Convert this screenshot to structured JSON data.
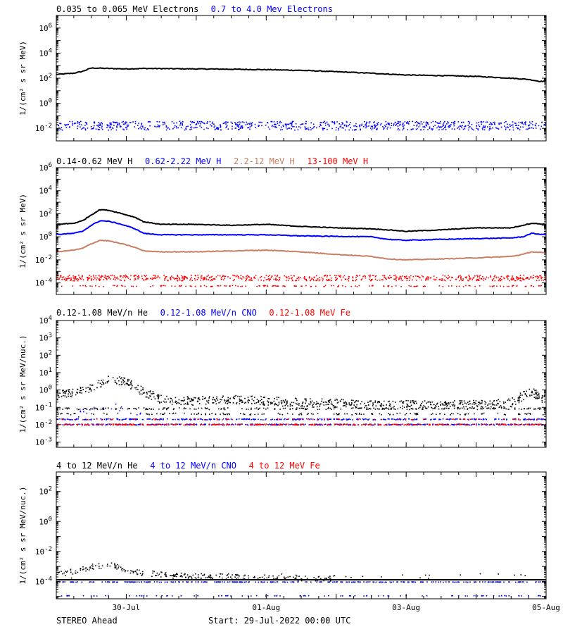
{
  "colors": {
    "black": "#000000",
    "blue": "#0000ff",
    "tan": "#c87f64",
    "red": "#ff0000"
  },
  "x_axis": {
    "start_hour": 0,
    "end_hour": 168,
    "ticks": [
      {
        "label": "30-Jul",
        "hour": 24
      },
      {
        "label": "01-Aug",
        "hour": 72
      },
      {
        "label": "03-Aug",
        "hour": 120
      },
      {
        "label": "05-Aug",
        "hour": 168
      }
    ]
  },
  "footer": {
    "left": "STEREO Ahead",
    "center": "Start: 29-Jul-2022 00:00 UTC"
  },
  "chart_data": [
    {
      "type": "line",
      "log_y": true,
      "ylim": [
        0.001,
        10000000.0
      ],
      "ylabel": "1/(cm² s sr MeV)",
      "ytick_labels": [
        {
          "base": "10",
          "exp": "-2",
          "value": 0.01
        },
        {
          "base": "10",
          "exp": "0",
          "value": 1
        },
        {
          "base": "10",
          "exp": "2",
          "value": 100.0
        },
        {
          "base": "10",
          "exp": "4",
          "value": 10000.0
        },
        {
          "base": "10",
          "exp": "6",
          "value": 1000000.0
        }
      ],
      "legend": [
        {
          "text": "0.035 to 0.065 MeV Electrons",
          "color": "#000000"
        },
        {
          "text": "0.7 to 4.0 Mev Electrons",
          "color": "#0000ff"
        }
      ],
      "series": [
        {
          "color": "#000000",
          "style": "line",
          "x": [
            0,
            6,
            9,
            12,
            18,
            24,
            30,
            36,
            48,
            60,
            72,
            84,
            96,
            108,
            120,
            132,
            144,
            156,
            162,
            166,
            168
          ],
          "y": [
            200,
            250,
            350,
            650,
            600,
            550,
            600,
            580,
            550,
            520,
            480,
            420,
            330,
            250,
            180,
            160,
            140,
            100,
            80,
            55,
            60
          ]
        },
        {
          "color": "#0000ff",
          "style": "noise",
          "base": 0.018,
          "spread": 0.35,
          "density": 1.0,
          "n": 800
        }
      ]
    },
    {
      "type": "line",
      "log_y": true,
      "ylim": [
        1e-05,
        1000000.0
      ],
      "ylabel": "1/(cm² s sr MeV)",
      "ytick_labels": [
        {
          "base": "10",
          "exp": "-4",
          "value": 0.0001
        },
        {
          "base": "10",
          "exp": "-2",
          "value": 0.01
        },
        {
          "base": "10",
          "exp": "0",
          "value": 1
        },
        {
          "base": "10",
          "exp": "2",
          "value": 100.0
        },
        {
          "base": "10",
          "exp": "4",
          "value": 10000.0
        },
        {
          "base": "10",
          "exp": "6",
          "value": 1000000.0
        }
      ],
      "legend": [
        {
          "text": "0.14-0.62 MeV H",
          "color": "#000000"
        },
        {
          "text": "0.62-2.22 MeV H",
          "color": "#0000ff"
        },
        {
          "text": "2.2-12 MeV H",
          "color": "#c87f64"
        },
        {
          "text": "13-100 MeV H",
          "color": "#ff0000"
        }
      ],
      "series": [
        {
          "color": "#000000",
          "style": "line",
          "x": [
            0,
            6,
            9,
            12,
            15,
            18,
            21,
            24,
            27,
            30,
            36,
            48,
            60,
            72,
            84,
            96,
            108,
            114,
            120,
            132,
            144,
            156,
            160,
            163,
            168
          ],
          "y": [
            12,
            15,
            25,
            80,
            230,
            200,
            130,
            80,
            50,
            20,
            12,
            12,
            10,
            12,
            8,
            6,
            5,
            4,
            3,
            4,
            6,
            6,
            10,
            15,
            12
          ]
        },
        {
          "color": "#0000ff",
          "style": "line",
          "x": [
            0,
            6,
            9,
            12,
            15,
            18,
            21,
            24,
            27,
            30,
            36,
            48,
            60,
            72,
            84,
            96,
            108,
            114,
            120,
            132,
            144,
            156,
            160,
            163,
            168
          ],
          "y": [
            1.6,
            2,
            3,
            10,
            25,
            22,
            15,
            9,
            5,
            2,
            1.5,
            1.5,
            1.5,
            1.5,
            1.2,
            1.1,
            1.0,
            0.6,
            0.5,
            0.6,
            0.7,
            0.8,
            1.0,
            2.0,
            1.5
          ]
        },
        {
          "color": "#c87f64",
          "style": "line",
          "x": [
            0,
            6,
            9,
            12,
            15,
            18,
            21,
            24,
            27,
            30,
            36,
            48,
            60,
            72,
            84,
            96,
            108,
            114,
            120,
            132,
            144,
            156,
            160,
            163,
            168
          ],
          "y": [
            0.05,
            0.07,
            0.1,
            0.25,
            0.5,
            0.45,
            0.3,
            0.2,
            0.12,
            0.06,
            0.05,
            0.05,
            0.06,
            0.07,
            0.05,
            0.03,
            0.02,
            0.012,
            0.01,
            0.012,
            0.015,
            0.02,
            0.03,
            0.05,
            0.04
          ]
        },
        {
          "color": "#ff0000",
          "style": "noise",
          "base": 0.0003,
          "spread": 0.25,
          "density": 1.0,
          "n": 700
        },
        {
          "color": "#ff0000",
          "style": "noise",
          "base": 6e-05,
          "spread": 0.05,
          "density": 0.35,
          "n": 400
        }
      ]
    },
    {
      "type": "scatter",
      "log_y": true,
      "ylim": [
        0.0005,
        10000.0
      ],
      "ylabel": "1/(cm² s sr MeV/nuc.)",
      "ytick_labels": [
        {
          "base": "10",
          "exp": "-3",
          "value": 0.001
        },
        {
          "base": "10",
          "exp": "-2",
          "value": 0.01
        },
        {
          "base": "10",
          "exp": "-1",
          "value": 0.1
        },
        {
          "base": "10",
          "exp": "0",
          "value": 1
        },
        {
          "base": "10",
          "exp": "1",
          "value": 10
        },
        {
          "base": "10",
          "exp": "2",
          "value": 100.0
        },
        {
          "base": "10",
          "exp": "3",
          "value": 1000.0
        },
        {
          "base": "10",
          "exp": "4",
          "value": 10000.0
        }
      ],
      "legend": [
        {
          "text": "0.12-1.08 MeV/n He",
          "color": "#000000"
        },
        {
          "text": "0.12-1.08 MeV/n CNO",
          "color": "#0000ff"
        },
        {
          "text": "0.12-1.08 MeV Fe",
          "color": "#ff0000"
        }
      ],
      "series": [
        {
          "color": "#000000",
          "style": "noise-track",
          "spread": 0.25,
          "density": 0.9,
          "n": 900,
          "x": [
            0,
            6,
            12,
            18,
            24,
            30,
            36,
            48,
            60,
            72,
            84,
            96,
            108,
            120,
            132,
            144,
            156,
            160,
            163,
            166,
            168
          ],
          "y": [
            0.5,
            0.8,
            1.5,
            5,
            3,
            0.8,
            0.3,
            0.25,
            0.3,
            0.25,
            0.2,
            0.18,
            0.15,
            0.15,
            0.15,
            0.15,
            0.2,
            0.5,
            0.8,
            0.4,
            0.3
          ]
        },
        {
          "color": "#000000",
          "style": "noise",
          "base": 0.09,
          "spread": 0.05,
          "density": 0.4,
          "n": 500
        },
        {
          "color": "#000000",
          "style": "noise",
          "base": 0.045,
          "spread": 0.05,
          "density": 0.3,
          "n": 500
        },
        {
          "color": "#0000ff",
          "style": "noise-track",
          "spread": 0.2,
          "density": 0.5,
          "n": 200,
          "x": [
            6,
            12,
            18,
            24,
            30
          ],
          "y": [
            0.04,
            0.08,
            0.15,
            0.07,
            0.04
          ]
        },
        {
          "color": "#0000ff",
          "style": "noise",
          "base": 0.022,
          "spread": 0.03,
          "density": 0.55,
          "n": 700
        },
        {
          "color": "#0000ff",
          "style": "noise",
          "base": 0.011,
          "spread": 0.03,
          "density": 0.55,
          "n": 800
        },
        {
          "color": "#ff0000",
          "style": "noise",
          "base": 0.011,
          "spread": 0.03,
          "density": 0.45,
          "n": 800
        },
        {
          "color": "#ff0000",
          "style": "noise",
          "base": 0.022,
          "spread": 0.03,
          "density": 0.2,
          "n": 300
        }
      ]
    },
    {
      "type": "scatter",
      "log_y": true,
      "ylim": [
        7e-06,
        2000.0
      ],
      "ylabel": "1/(cm² s sr MeV/nuc.)",
      "ytick_labels": [
        {
          "base": "10",
          "exp": "-4",
          "value": 0.0001
        },
        {
          "base": "10",
          "exp": "-2",
          "value": 0.01
        },
        {
          "base": "10",
          "exp": "0",
          "value": 1
        },
        {
          "base": "10",
          "exp": "2",
          "value": 100.0
        }
      ],
      "legend": [
        {
          "text": "4 to 12 MeV/n He",
          "color": "#000000"
        },
        {
          "text": "4 to 12 MeV/n CNO",
          "color": "#0000ff"
        },
        {
          "text": "4 to 12 MeV Fe",
          "color": "#ff0000"
        }
      ],
      "series": [
        {
          "color": "#000000",
          "style": "noise-track",
          "spread": 0.2,
          "density": 0.8,
          "n": 500,
          "x": [
            0,
            6,
            12,
            18,
            24,
            30,
            36,
            48,
            60,
            72,
            84,
            96
          ],
          "y": [
            0.0003,
            0.0005,
            0.001,
            0.0015,
            0.0006,
            0.0004,
            0.0003,
            0.00025,
            0.00022,
            0.0002,
            0.00018,
            0.00018
          ]
        },
        {
          "color": "#000000",
          "style": "noise",
          "base": 0.00025,
          "spread": 0.15,
          "density": 0.05,
          "n": 600
        },
        {
          "color": "#000000",
          "style": "line",
          "x": [
            0,
            168
          ],
          "y": [
            0.00013,
            0.00013
          ]
        },
        {
          "color": "#0000ff",
          "style": "noise",
          "base": 0.0001,
          "spread": 0.01,
          "density": 0.4,
          "n": 700
        },
        {
          "color": "#0000ff",
          "style": "noise",
          "base": 1.2e-05,
          "spread": 0.01,
          "density": 0.25,
          "n": 400
        }
      ]
    }
  ]
}
